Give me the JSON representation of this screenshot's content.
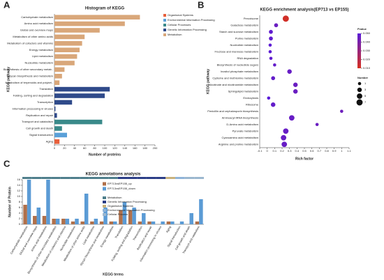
{
  "chart_data": [
    {
      "label": "A",
      "type": "bar",
      "orientation": "horizontal",
      "title": "Histogram of KEGG",
      "x_label": "Number of proteins",
      "y_label": "KEGG pathway",
      "categories": [
        "Carbohydrate metabolism",
        "Amino acid metabolism",
        "Global and overview maps",
        "Metabolism of other amino acids",
        "Metabolism of cofactors and vitamins",
        "Energy metabolism",
        "Lipid metabolism",
        "Nucleotide metabolism",
        "Biosynthesis of other secondary metab..",
        "Glycan biosynthesis and metabolism",
        "Metabolism of terpenoids and polyket..",
        "Translation",
        "Folding, sorting and degradation",
        "Transcription",
        "Information processing in viruses",
        "Replication and repair",
        "Transport and catabolism",
        "Cell growth and death",
        "Signal transduction",
        "Aging"
      ],
      "series": [
        {
          "name": "Organismal Systems",
          "color": "#e8603c",
          "values": [
            null,
            null,
            null,
            null,
            null,
            null,
            null,
            null,
            null,
            null,
            null,
            null,
            null,
            null,
            null,
            null,
            null,
            null,
            null,
            10
          ]
        },
        {
          "name": "Environmental Information Processing",
          "color": "#5aa0d8",
          "values": [
            null,
            null,
            null,
            null,
            null,
            null,
            null,
            null,
            null,
            null,
            null,
            null,
            null,
            null,
            null,
            null,
            null,
            null,
            25,
            null
          ]
        },
        {
          "name": "Cellular Processes",
          "color": "#3a8a8a",
          "values": [
            null,
            null,
            null,
            null,
            null,
            null,
            null,
            null,
            null,
            null,
            null,
            null,
            null,
            null,
            null,
            null,
            95,
            15,
            null,
            null
          ]
        },
        {
          "name": "Genetic Information Processing",
          "color": "#2f4a8a",
          "values": [
            null,
            null,
            null,
            null,
            null,
            null,
            null,
            null,
            null,
            null,
            null,
            110,
            100,
            35,
            2,
            5,
            null,
            null,
            null,
            null
          ]
        },
        {
          "name": "Metabolism",
          "color": "#d9a77a",
          "values": [
            170,
            140,
            90,
            60,
            55,
            50,
            45,
            40,
            20,
            15,
            10,
            null,
            null,
            null,
            null,
            null,
            null,
            null,
            null,
            null
          ]
        }
      ],
      "xlim": [
        0,
        200
      ],
      "xticks": [
        0,
        20,
        40,
        60,
        80,
        100,
        120,
        140,
        160,
        180,
        200
      ]
    },
    {
      "label": "B",
      "type": "scatter",
      "title": "KEGG enrichment analysis(EP713 vs EP155)",
      "x_label": "Rich factor",
      "y_label": "KEGG pathway",
      "categories": [
        "Peroxisome",
        "Galactose metabolism",
        "Starch and sucrose metabolism",
        "Purine metabolism",
        "Nucleotide metabolism",
        "Fructose and mannose metabolism",
        "RNA degradation",
        "Biosynthesis of nucleotide sugars",
        "Inositol phosphate metabolism",
        "Cysteine and methionine metabolism",
        "Nicotinate and nicotinamide metabolism",
        "Sphingolipid metabolism",
        "Endocytosis",
        "Ribosome",
        "Penicillin and cephalosporin biosynthesis",
        "Aminoacyl-tRNA biosynthesis",
        "D-Amino acid metabolism",
        "Pyruvate metabolism",
        "Cyanoamino acid metabolism",
        "Arginine and proline metabolism"
      ],
      "values": [
        0.25,
        0.12,
        0.05,
        0.05,
        0.04,
        0.04,
        0.05,
        0.1,
        0.3,
        0.08,
        0.38,
        0.38,
        0.02,
        0.08,
        1.0,
        0.33,
        0.67,
        0.25,
        0.22,
        0.23
      ],
      "sizes": [
        7,
        2,
        2,
        2,
        1,
        1,
        1,
        1,
        3,
        2,
        3,
        3,
        1,
        3,
        1,
        5,
        1,
        5,
        5,
        5
      ],
      "pvalues": [
        0.012,
        0.045,
        0.048,
        0.048,
        0.049,
        0.049,
        0.048,
        0.047,
        0.046,
        0.047,
        0.045,
        0.045,
        0.05,
        0.047,
        0.044,
        0.046,
        0.045,
        0.046,
        0.046,
        0.046
      ],
      "xlim": [
        -0.1,
        1.1
      ],
      "xticks": [
        -0.1,
        0,
        0.1,
        0.2,
        0.3,
        0.4,
        0.5,
        0.6,
        0.7,
        0.8,
        0.9,
        1,
        1.1
      ],
      "color_legend_title": "Pvalue",
      "color_range": [
        "#d7301f",
        "#5a1bd8"
      ],
      "colorlim": [
        0.01,
        0.05
      ],
      "colorticks": [
        {
          "value": 0.01,
          "label": "0.010"
        },
        {
          "value": 0.02,
          "label": "0.020"
        },
        {
          "value": 0.03,
          "label": "0.030"
        },
        {
          "value": 0.04,
          "label": "0.040"
        },
        {
          "value": 0.05,
          "label": "0.050"
        }
      ],
      "size_legend_title": "Number",
      "size_ticks": [
        1,
        3,
        5,
        7
      ]
    },
    {
      "label": "C",
      "type": "bar",
      "title": "KEGG annotations analysis",
      "x_label": "KEGG terms",
      "y_label": "Number of Protein",
      "categories": [
        "Carbohydrate metabolism",
        "Global and overview maps",
        "Amino acid metabolism",
        "Biosynthesis of other secondary metabolites",
        "Metabolism of cofactors and vitamins",
        "Nucleotide metabolism",
        "Metabolism of other amino acids",
        "Lipid metabolism",
        "Glycan biosynthesis and metabolism",
        "Energy metabolism",
        "Translation",
        "Folding, sorting and degradation",
        "Transcription",
        "Replication and repair",
        "Information processing in viruses",
        "Aging",
        "Signal transduction",
        "Cell growth and death",
        "Transport and catabolism"
      ],
      "series": [
        {
          "name": "EP713vsEP155_up",
          "color": "#b0704a",
          "values": [
            7,
            3,
            3,
            2,
            2,
            1,
            1,
            1,
            1,
            1,
            5,
            5,
            1,
            1,
            0,
            1,
            0,
            0,
            1
          ]
        },
        {
          "name": "EP713vsEP155_down",
          "color": "#5b9bd5",
          "values": [
            16,
            6,
            16,
            2,
            2,
            2,
            11,
            2,
            6,
            1,
            8,
            6,
            4,
            1,
            1,
            1,
            1,
            4,
            9
          ]
        }
      ],
      "ylim": [
        0,
        16
      ],
      "yticks": [
        0,
        2,
        4,
        6,
        8,
        10,
        12,
        14,
        16
      ],
      "groups": [
        {
          "name": "Metabolism",
          "color": "#4f7f8c"
        },
        {
          "name": "Genetic Information Processing",
          "color": "#2c3e87"
        },
        {
          "name": "Organismal Systems",
          "color": "#c9b27c"
        },
        {
          "name": "Environmental Information Processing",
          "color": "#8fb3d9"
        },
        {
          "name": "Cellular Process",
          "color": "#9bb7cf"
        }
      ],
      "category_group": [
        0,
        0,
        0,
        0,
        0,
        0,
        0,
        0,
        0,
        0,
        1,
        1,
        1,
        1,
        1,
        2,
        3,
        4,
        4
      ]
    }
  ]
}
